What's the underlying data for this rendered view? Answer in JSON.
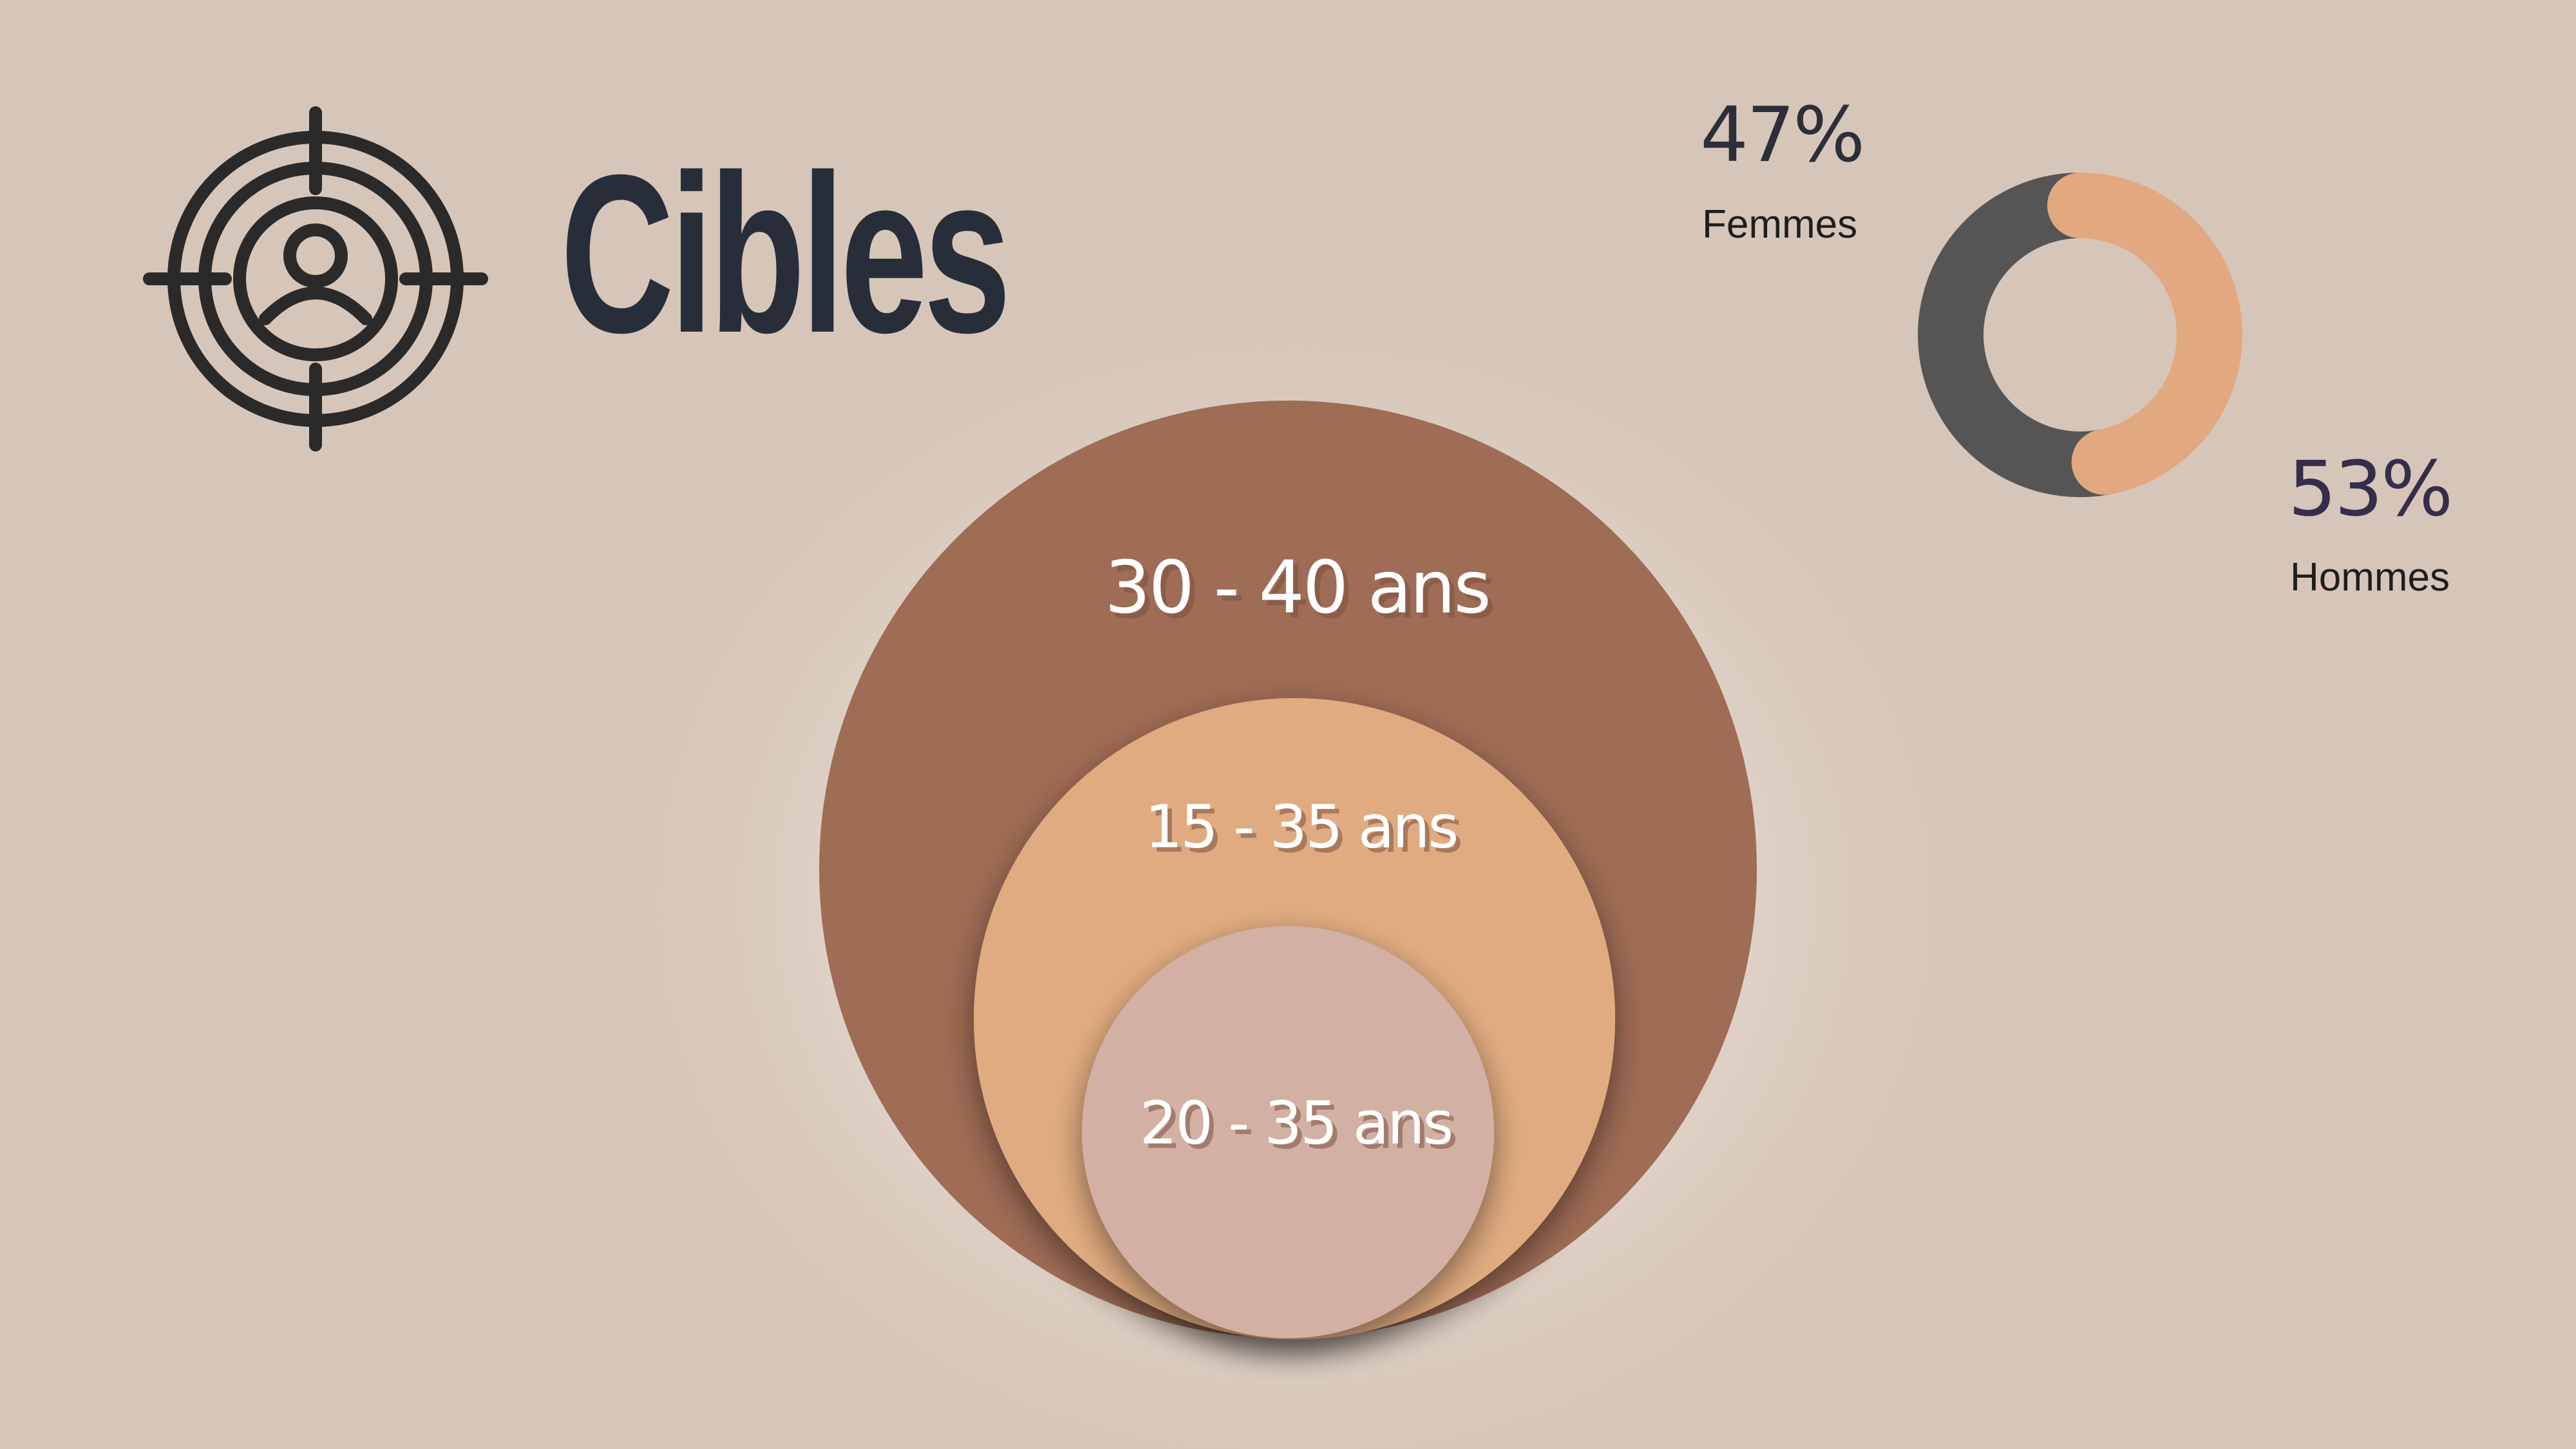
{
  "title": "Cibles",
  "icon": "target-person-icon",
  "colors": {
    "background": "#d6c6b9",
    "title": "#282d3a",
    "outer_circle": "#9f6c55",
    "middle_circle": "#e0ab80",
    "inner_circle": "#d3b0a4",
    "donut_femmes": "#e2a87f",
    "donut_hommes": "#555555"
  },
  "age_groups": [
    {
      "label": "30 - 40 ans"
    },
    {
      "label": "15 - 35 ans"
    },
    {
      "label": "20 - 35 ans"
    }
  ],
  "chart_data": {
    "type": "pie",
    "variant": "donut",
    "labels": [
      "Femmes",
      "Hommes"
    ],
    "values": [
      47,
      53
    ],
    "value_labels": [
      "47%",
      "53%"
    ]
  }
}
